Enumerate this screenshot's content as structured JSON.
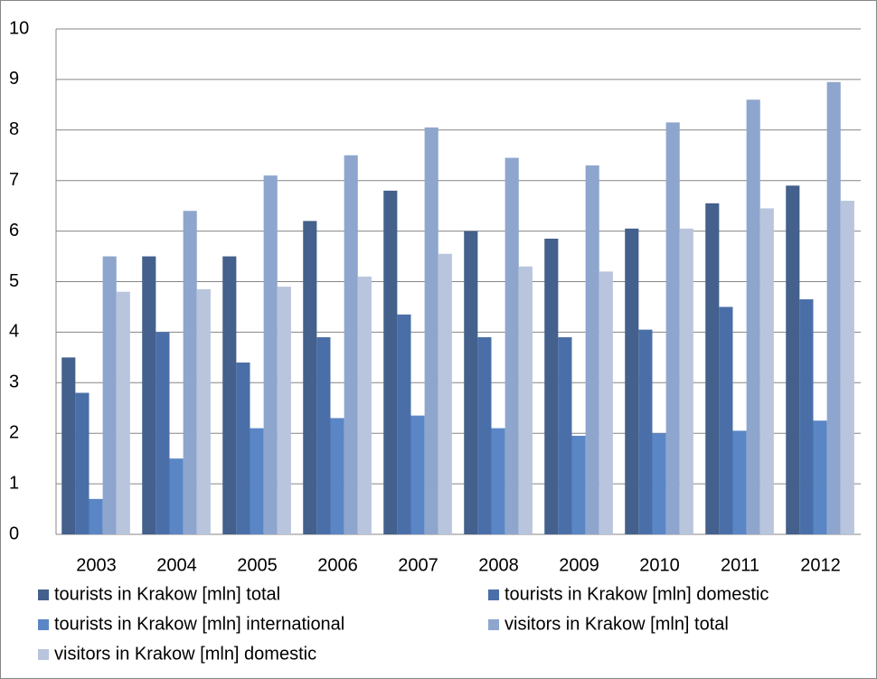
{
  "chart_data": {
    "type": "bar",
    "categories": [
      "2003",
      "2004",
      "2005",
      "2006",
      "2007",
      "2008",
      "2009",
      "2010",
      "2011",
      "2012"
    ],
    "series": [
      {
        "name": "tourists in Krakow [mln] total",
        "color": "#44608c",
        "values": [
          3.5,
          5.5,
          5.5,
          6.2,
          6.8,
          6.0,
          5.85,
          6.05,
          6.55,
          6.9
        ]
      },
      {
        "name": "tourists in Krakow [mln] domestic",
        "color": "#4a6fa8",
        "values": [
          2.8,
          4.0,
          3.4,
          3.9,
          4.35,
          3.9,
          3.9,
          4.05,
          4.5,
          4.65
        ]
      },
      {
        "name": "tourists in Krakow [mln] international",
        "color": "#5a86c6",
        "values": [
          0.7,
          1.5,
          2.1,
          2.3,
          2.35,
          2.1,
          1.95,
          2.0,
          2.05,
          2.25
        ]
      },
      {
        "name": "visitors in Krakow [mln] total",
        "color": "#8ea6cd",
        "values": [
          5.5,
          6.4,
          7.1,
          7.5,
          8.05,
          7.45,
          7.3,
          8.15,
          8.6,
          8.95
        ]
      },
      {
        "name": "visitors in Krakow [mln] domestic",
        "color": "#b8c5dd",
        "values": [
          4.8,
          4.85,
          4.9,
          5.1,
          5.55,
          5.3,
          5.2,
          6.05,
          6.45,
          6.6
        ]
      }
    ],
    "ylim": [
      0,
      10
    ],
    "yticks": [
      0,
      1,
      2,
      3,
      4,
      5,
      6,
      7,
      8,
      9,
      10
    ],
    "grid": true,
    "legend": "bottom"
  }
}
